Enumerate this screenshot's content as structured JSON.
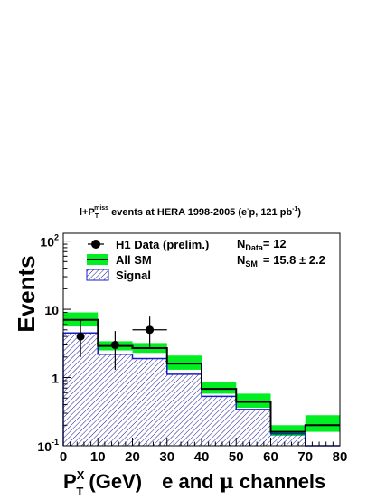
{
  "title": {
    "lead": "l+P",
    "lead_sub": "T",
    "lead_sup": "miss",
    "middle": " events at HERA 1998-2005 (e",
    "charge_sup": "-",
    "tail": "p, 121 pb",
    "lumi_sup": "-1",
    "close": ")"
  },
  "axes": {
    "ylabel": "Events",
    "xlabel_p": "P",
    "xlabel_sup": "X",
    "xlabel_sub": "T",
    "xlabel_units": " (GeV)",
    "xlabel_channels_1": "e and ",
    "xlabel_mu": "μ",
    "xlabel_channels_2": " channels"
  },
  "legend": {
    "data_label": "H1 Data (prelim.)",
    "sm_label": "All SM",
    "signal_label": "Signal"
  },
  "stats": {
    "n_data_label": "N",
    "n_data_sub": "Data",
    "n_data_value": "= 12",
    "n_sm_label": "N",
    "n_sm_sub": "SM",
    "n_sm_value": "= 15.8 ± 2.2"
  },
  "colors": {
    "sm_band": "#00ee22",
    "signal_line": "#1a1acc",
    "signal_hatch": "#1a1a99",
    "data_marker": "#000000"
  },
  "chart_data": {
    "type": "histogram",
    "title": "l+P_T^miss events at HERA 1998-2005 (e^-p, 121 pb^-1)",
    "xlabel": "P_T^X (GeV)   e and μ channels",
    "ylabel": "Events",
    "xscale": "linear",
    "yscale": "log",
    "xlim": [
      0,
      80
    ],
    "ylim": [
      0.1,
      130
    ],
    "x_ticks": [
      "0",
      "10",
      "20",
      "30",
      "40",
      "50",
      "60",
      "70",
      "80"
    ],
    "y_ticks": [
      {
        "mantissa": "10",
        "exponent": "-1"
      },
      {
        "mantissa": "1",
        "exponent": ""
      },
      {
        "mantissa": "10",
        "exponent": ""
      },
      {
        "mantissa": "10",
        "exponent": "2"
      }
    ],
    "bin_edges": [
      0,
      10,
      20,
      30,
      40,
      50,
      60,
      70,
      80
    ],
    "series": [
      {
        "name": "All SM",
        "style": "step_with_error_band",
        "values": [
          7.0,
          2.9,
          2.7,
          1.6,
          0.68,
          0.44,
          0.16,
          0.2
        ],
        "band_low": [
          5.6,
          2.5,
          2.3,
          1.3,
          0.58,
          0.36,
          0.14,
          0.16
        ],
        "band_high": [
          9.0,
          3.4,
          3.2,
          2.1,
          0.86,
          0.58,
          0.2,
          0.28
        ]
      },
      {
        "name": "Signal",
        "style": "hatched_step",
        "values": [
          4.5,
          2.2,
          1.9,
          1.12,
          0.53,
          0.34,
          0.15,
          0.1
        ]
      },
      {
        "name": "H1 Data (prelim.)",
        "style": "points_with_errors",
        "x": [
          5,
          15,
          25
        ],
        "y": [
          4,
          3,
          5
        ],
        "y_err_low": [
          2.0,
          1.7,
          2.2
        ],
        "y_err_high": [
          3.0,
          1.8,
          2.8
        ],
        "x_err": [
          0,
          0,
          5
        ]
      }
    ],
    "legend_position": "top-left"
  }
}
